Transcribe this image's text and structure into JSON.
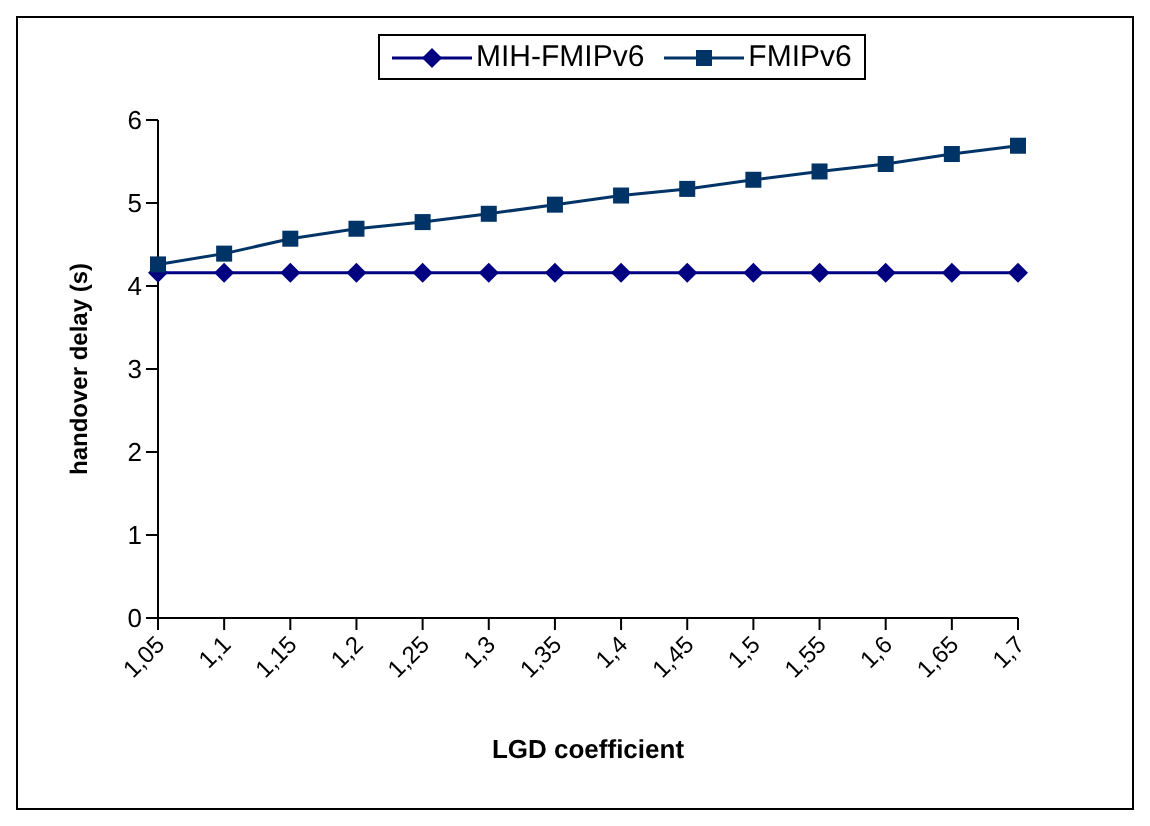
{
  "chart_data": {
    "type": "line",
    "xlabel": "LGD coefficient",
    "ylabel": "handover delay (s)",
    "categories": [
      "1,05",
      "1,1",
      "1,15",
      "1,2",
      "1,25",
      "1,3",
      "1,35",
      "1,4",
      "1,45",
      "1,5",
      "1,55",
      "1,6",
      "1,65",
      "1,7"
    ],
    "series": [
      {
        "name": "MIH-FMIPv6",
        "color": "#000080",
        "marker": "diamond",
        "values": [
          4.16,
          4.16,
          4.16,
          4.16,
          4.16,
          4.16,
          4.16,
          4.16,
          4.16,
          4.16,
          4.16,
          4.16,
          4.16,
          4.16
        ]
      },
      {
        "name": "FMIPv6",
        "color": "#003366",
        "marker": "square",
        "values": [
          4.26,
          4.39,
          4.57,
          4.69,
          4.77,
          4.87,
          4.98,
          5.09,
          5.17,
          5.28,
          5.38,
          5.47,
          5.59,
          5.69
        ]
      }
    ],
    "ylim": [
      0,
      6
    ],
    "yticks": [
      0,
      1,
      2,
      3,
      4,
      5,
      6
    ],
    "grid": false,
    "legend": "top"
  }
}
